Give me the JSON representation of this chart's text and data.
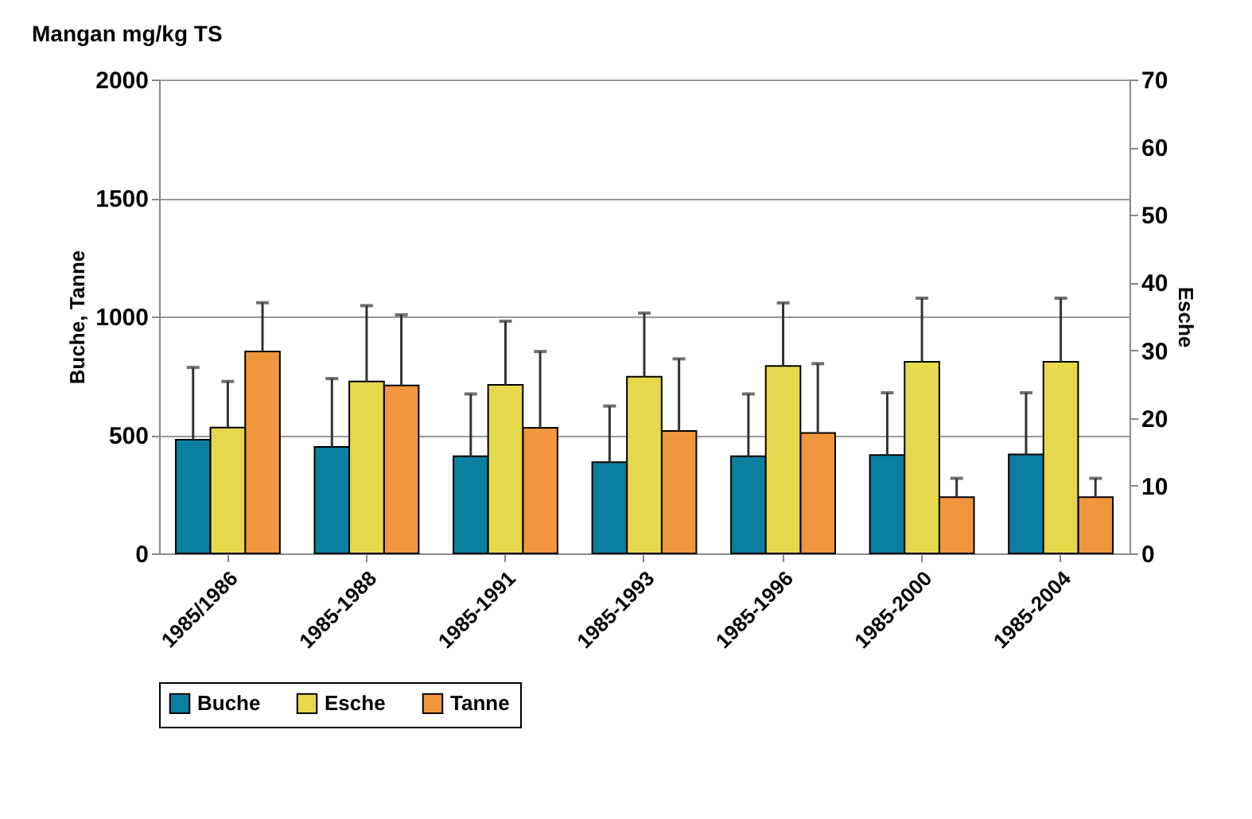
{
  "chart_data": {
    "type": "bar",
    "title": "Mangan mg/kg TS",
    "ylabel": "Buche, Tanne",
    "y2label": "Esche",
    "categories": [
      "1985/1986",
      "1985-1988",
      "1985-1991",
      "1985-1993",
      "1985-1996",
      "1985-2000",
      "1985-2004"
    ],
    "series": [
      {
        "name": "Buche",
        "color": "#0a7fa0",
        "values": [
          480,
          450,
          410,
          385,
          410,
          415,
          418
        ],
        "errors": [
          [
            480,
            785
          ],
          [
            450,
            738
          ],
          [
            410,
            673
          ],
          [
            385,
            622
          ],
          [
            410,
            673
          ],
          [
            415,
            678
          ],
          [
            418,
            678
          ]
        ]
      },
      {
        "name": "Esche",
        "color": "#e6d84c",
        "axis": "y2",
        "values": [
          18.6,
          25.4,
          24.9,
          26.1,
          27.7,
          28.3,
          28.3
        ],
        "errors": [
          [
            18.6,
            25.4
          ],
          [
            25.4,
            36.6
          ],
          [
            24.9,
            34.3
          ],
          [
            26.1,
            35.5
          ],
          [
            27.7,
            37.0
          ],
          [
            28.3,
            37.7
          ],
          [
            28.3,
            37.7
          ]
        ]
      },
      {
        "name": "Tanne",
        "color": "#f0963c",
        "values": [
          852,
          709,
          530,
          517,
          508,
          237,
          237
        ],
        "errors": [
          [
            852,
            1058
          ],
          [
            709,
            1007
          ],
          [
            530,
            852
          ],
          [
            517,
            821
          ],
          [
            508,
            801
          ],
          [
            237,
            317
          ],
          [
            237,
            317
          ]
        ]
      }
    ],
    "ylim": [
      0,
      2000
    ],
    "yticks": [
      0,
      500,
      1000,
      1500,
      2000
    ],
    "y2lim": [
      0,
      70
    ],
    "y2ticks": [
      0,
      10,
      20,
      30,
      40,
      50,
      60,
      70
    ],
    "grid": "y",
    "legend": "bottom"
  }
}
